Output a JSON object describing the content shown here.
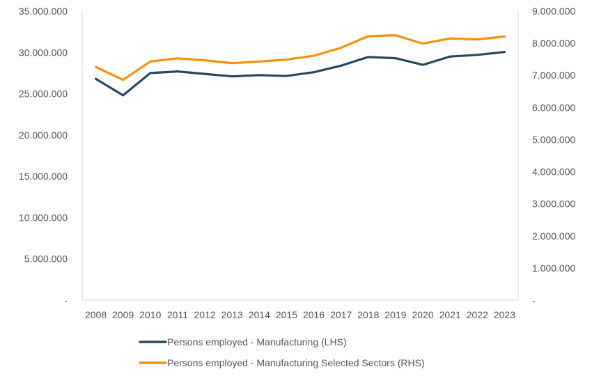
{
  "chart_data": {
    "type": "line",
    "categories": [
      "2008",
      "2009",
      "2010",
      "2011",
      "2012",
      "2013",
      "2014",
      "2015",
      "2016",
      "2017",
      "2018",
      "2019",
      "2020",
      "2021",
      "2022",
      "2023"
    ],
    "y_left": {
      "range": [
        0,
        35000000
      ],
      "tick_labels": [
        "-",
        "5.000.000",
        "10.000.000",
        "15.000.000",
        "20.000.000",
        "25.000.000",
        "30.000.000",
        "35.000.000"
      ]
    },
    "y_right": {
      "range": [
        0,
        9000000
      ],
      "tick_labels": [
        "-",
        "1.000.000",
        "2.000.000",
        "3.000.000",
        "4.000.000",
        "5.000.000",
        "6.000.000",
        "7.000.000",
        "8.000.000",
        "9.000.000"
      ]
    },
    "series": [
      {
        "name": "Persons employed - Manufacturing (LHS)",
        "axis": "left",
        "color": "#244a5e",
        "values": [
          26800000,
          24800000,
          27500000,
          27700000,
          27400000,
          27100000,
          27250000,
          27150000,
          27600000,
          28400000,
          29450000,
          29300000,
          28500000,
          29500000,
          29700000,
          30050000
        ]
      },
      {
        "name": "Persons employed - Manufacturing Selected Sectors (RHS)",
        "axis": "right",
        "color": "#f7900a",
        "values": [
          7260000,
          6860000,
          7430000,
          7530000,
          7470000,
          7380000,
          7430000,
          7490000,
          7610000,
          7860000,
          8220000,
          8250000,
          7990000,
          8150000,
          8120000,
          8210000
        ]
      }
    ],
    "legend_position": "bottom",
    "grid": false,
    "title": "",
    "xlabel": "",
    "ylabel": ""
  }
}
